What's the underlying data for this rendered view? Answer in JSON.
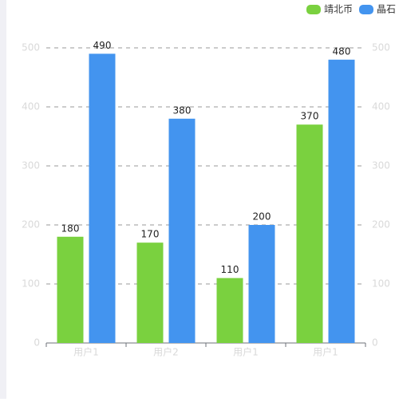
{
  "chart_data": {
    "type": "bar",
    "categories": [
      "用户1",
      "用户2",
      "用户1",
      "用户1"
    ],
    "series": [
      {
        "name": "靖北币",
        "color": "#7ad13f",
        "values": [
          180,
          170,
          110,
          370
        ]
      },
      {
        "name": "晶石",
        "color": "#4394ef",
        "values": [
          490,
          380,
          200,
          480
        ]
      }
    ],
    "ylim": [
      0,
      500
    ],
    "yticks": [
      0,
      100,
      200,
      300,
      400,
      500
    ],
    "y2lim": [
      0,
      500
    ],
    "y2ticks": [
      0,
      100,
      200,
      300,
      400,
      500
    ],
    "grid": true,
    "legend": "top-right"
  }
}
